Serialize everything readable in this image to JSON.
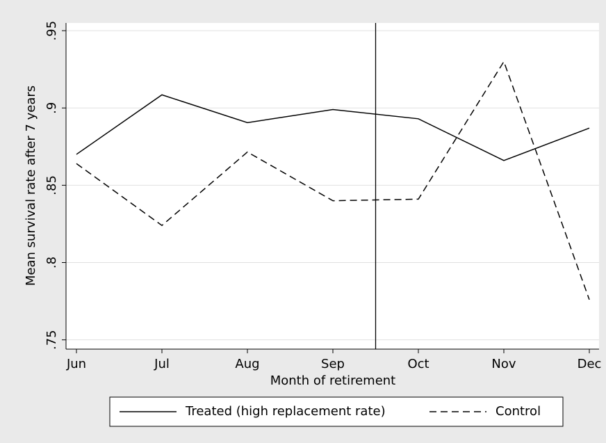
{
  "chart_data": {
    "type": "line",
    "x_label": "Month of retirement",
    "y_label": "Mean survival rate after 7 years",
    "categories": [
      "Jun",
      "Jul",
      "Aug",
      "Sep",
      "Oct",
      "Nov",
      "Dec"
    ],
    "series": [
      {
        "name": "Treated (high replacement rate)",
        "color": "#000000",
        "line_style": "solid",
        "values": [
          0.87,
          0.9085,
          0.8905,
          0.899,
          0.893,
          0.866,
          0.887
        ]
      },
      {
        "name": "Control",
        "color": "#000000",
        "line_style": "dashed",
        "values": [
          0.864,
          0.824,
          0.8715,
          0.84,
          0.841,
          0.93,
          0.776
        ]
      }
    ],
    "ylim": [
      0.744,
      0.955
    ],
    "yticks": [
      {
        "value": 0.75,
        "label": ".75"
      },
      {
        "value": 0.8,
        "label": ".8"
      },
      {
        "value": 0.85,
        "label": ".85"
      },
      {
        "value": 0.9,
        "label": ".9"
      },
      {
        "value": 0.95,
        "label": ".95"
      }
    ],
    "grid": true,
    "legend_position": "bottom"
  }
}
